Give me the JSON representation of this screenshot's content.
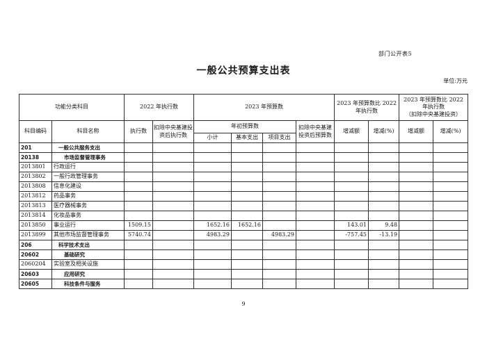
{
  "doc": {
    "corner_label": "部门公开表5",
    "title": "一般公共预算支出表",
    "unit_label": "单位:万元",
    "page_number": "9"
  },
  "table": {
    "header": {
      "functional_subject": "功能分类科目",
      "exec_2022": "2022 年执行数",
      "budget_2023": "2023 年预算数",
      "budget_vs_exec": "2023 年预算数比 2022 年执行数",
      "budget_vs_exec_excl_line1": "2023 年预算数比 2022 年执行数",
      "budget_vs_exec_excl_line2": "（扣除中央基建投资）",
      "subject_code": "科目编码",
      "subject_name": "科目名称",
      "exec_amount": "执行数",
      "exec_excl_capital": "扣除中央基建投资后执行数",
      "initial_budget": "年初预算数",
      "subtotal": "小计",
      "basic_expense": "基本支出",
      "project_expense": "项目支出",
      "budget_excl_capital": "扣除中央基建投资后预算数",
      "change_amount": "增减额",
      "change_pct": "增减(%)"
    },
    "value_columns": [
      "exec-2022",
      "exec-2022-excl-capital",
      "initial-subtotal",
      "basic-expense",
      "project-expense",
      "budget-excl-capital",
      "change-amount",
      "change-pct",
      "change-amount-excl",
      "change-pct-excl"
    ],
    "rows": [
      {
        "code": "201",
        "name": "一般公共服务支出",
        "level": 1,
        "values": [
          "",
          "",
          "",
          "",
          "",
          "",
          "",
          "",
          "",
          ""
        ]
      },
      {
        "code": "20138",
        "name": "市场监督管理事务",
        "level": 2,
        "values": [
          "",
          "",
          "",
          "",
          "",
          "",
          "",
          "",
          "",
          ""
        ]
      },
      {
        "code": "2013801",
        "name": "行政运行",
        "level": 3,
        "values": [
          "",
          "",
          "",
          "",
          "",
          "",
          "",
          "",
          "",
          ""
        ]
      },
      {
        "code": "2013802",
        "name": "一般行政管理事务",
        "level": 3,
        "values": [
          "",
          "",
          "",
          "",
          "",
          "",
          "",
          "",
          "",
          ""
        ]
      },
      {
        "code": "2013808",
        "name": "信息化建设",
        "level": 3,
        "values": [
          "",
          "",
          "",
          "",
          "",
          "",
          "",
          "",
          "",
          ""
        ]
      },
      {
        "code": "2013812",
        "name": "药品事务",
        "level": 3,
        "values": [
          "",
          "",
          "",
          "",
          "",
          "",
          "",
          "",
          "",
          ""
        ]
      },
      {
        "code": "2013813",
        "name": "医疗器械事务",
        "level": 3,
        "values": [
          "",
          "",
          "",
          "",
          "",
          "",
          "",
          "",
          "",
          ""
        ]
      },
      {
        "code": "2013814",
        "name": "化妆品事务",
        "level": 3,
        "values": [
          "",
          "",
          "",
          "",
          "",
          "",
          "",
          "",
          "",
          ""
        ]
      },
      {
        "code": "2013850",
        "name": "事业运行",
        "level": 3,
        "values": [
          "1509.15",
          "",
          "1652.16",
          "1652.16",
          "",
          "",
          "143.01",
          "9.48",
          "",
          ""
        ]
      },
      {
        "code": "2013899",
        "name": "其他市场监督管理事务",
        "level": 3,
        "values": [
          "5740.74",
          "",
          "4983.29",
          "",
          "4983.29",
          "",
          "-757.45",
          "-13.19",
          "",
          ""
        ]
      },
      {
        "code": "206",
        "name": "科学技术支出",
        "level": 1,
        "values": [
          "",
          "",
          "",
          "",
          "",
          "",
          "",
          "",
          "",
          ""
        ]
      },
      {
        "code": "20602",
        "name": "基础研究",
        "level": 2,
        "values": [
          "",
          "",
          "",
          "",
          "",
          "",
          "",
          "",
          "",
          ""
        ]
      },
      {
        "code": "2060204",
        "name": "实验室及相关设施",
        "level": 3,
        "values": [
          "",
          "",
          "",
          "",
          "",
          "",
          "",
          "",
          "",
          ""
        ]
      },
      {
        "code": "20603",
        "name": "应用研究",
        "level": 2,
        "values": [
          "",
          "",
          "",
          "",
          "",
          "",
          "",
          "",
          "",
          ""
        ]
      },
      {
        "code": "20605",
        "name": "科技条件与服务",
        "level": 2,
        "values": [
          "",
          "",
          "",
          "",
          "",
          "",
          "",
          "",
          "",
          ""
        ]
      }
    ]
  }
}
